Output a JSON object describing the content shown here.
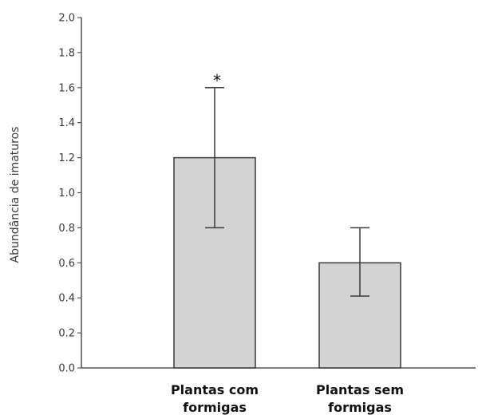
{
  "chart_data": {
    "type": "bar",
    "title": "",
    "xlabel": "",
    "ylabel": "Abundância de imaturos",
    "categories": [
      [
        "Plantas com",
        "formigas"
      ],
      [
        "Plantas sem",
        "formigas"
      ]
    ],
    "values": [
      1.2,
      0.6
    ],
    "error_low": [
      0.8,
      0.41
    ],
    "error_high": [
      1.6,
      0.8
    ],
    "annotations": [
      "*",
      ""
    ],
    "ylim": [
      0,
      2.0
    ],
    "yticks": [
      "0.0",
      "0.2",
      "0.4",
      "0.6",
      "0.8",
      "1.0",
      "1.2",
      "1.4",
      "1.6",
      "1.8",
      "2.0"
    ],
    "grid": false,
    "legend": "none",
    "colors": {
      "bar_fill": "#d3d3d3",
      "bar_stroke": "#3a3a3a",
      "axis": "#555555",
      "error": "#3a3a3a"
    }
  }
}
